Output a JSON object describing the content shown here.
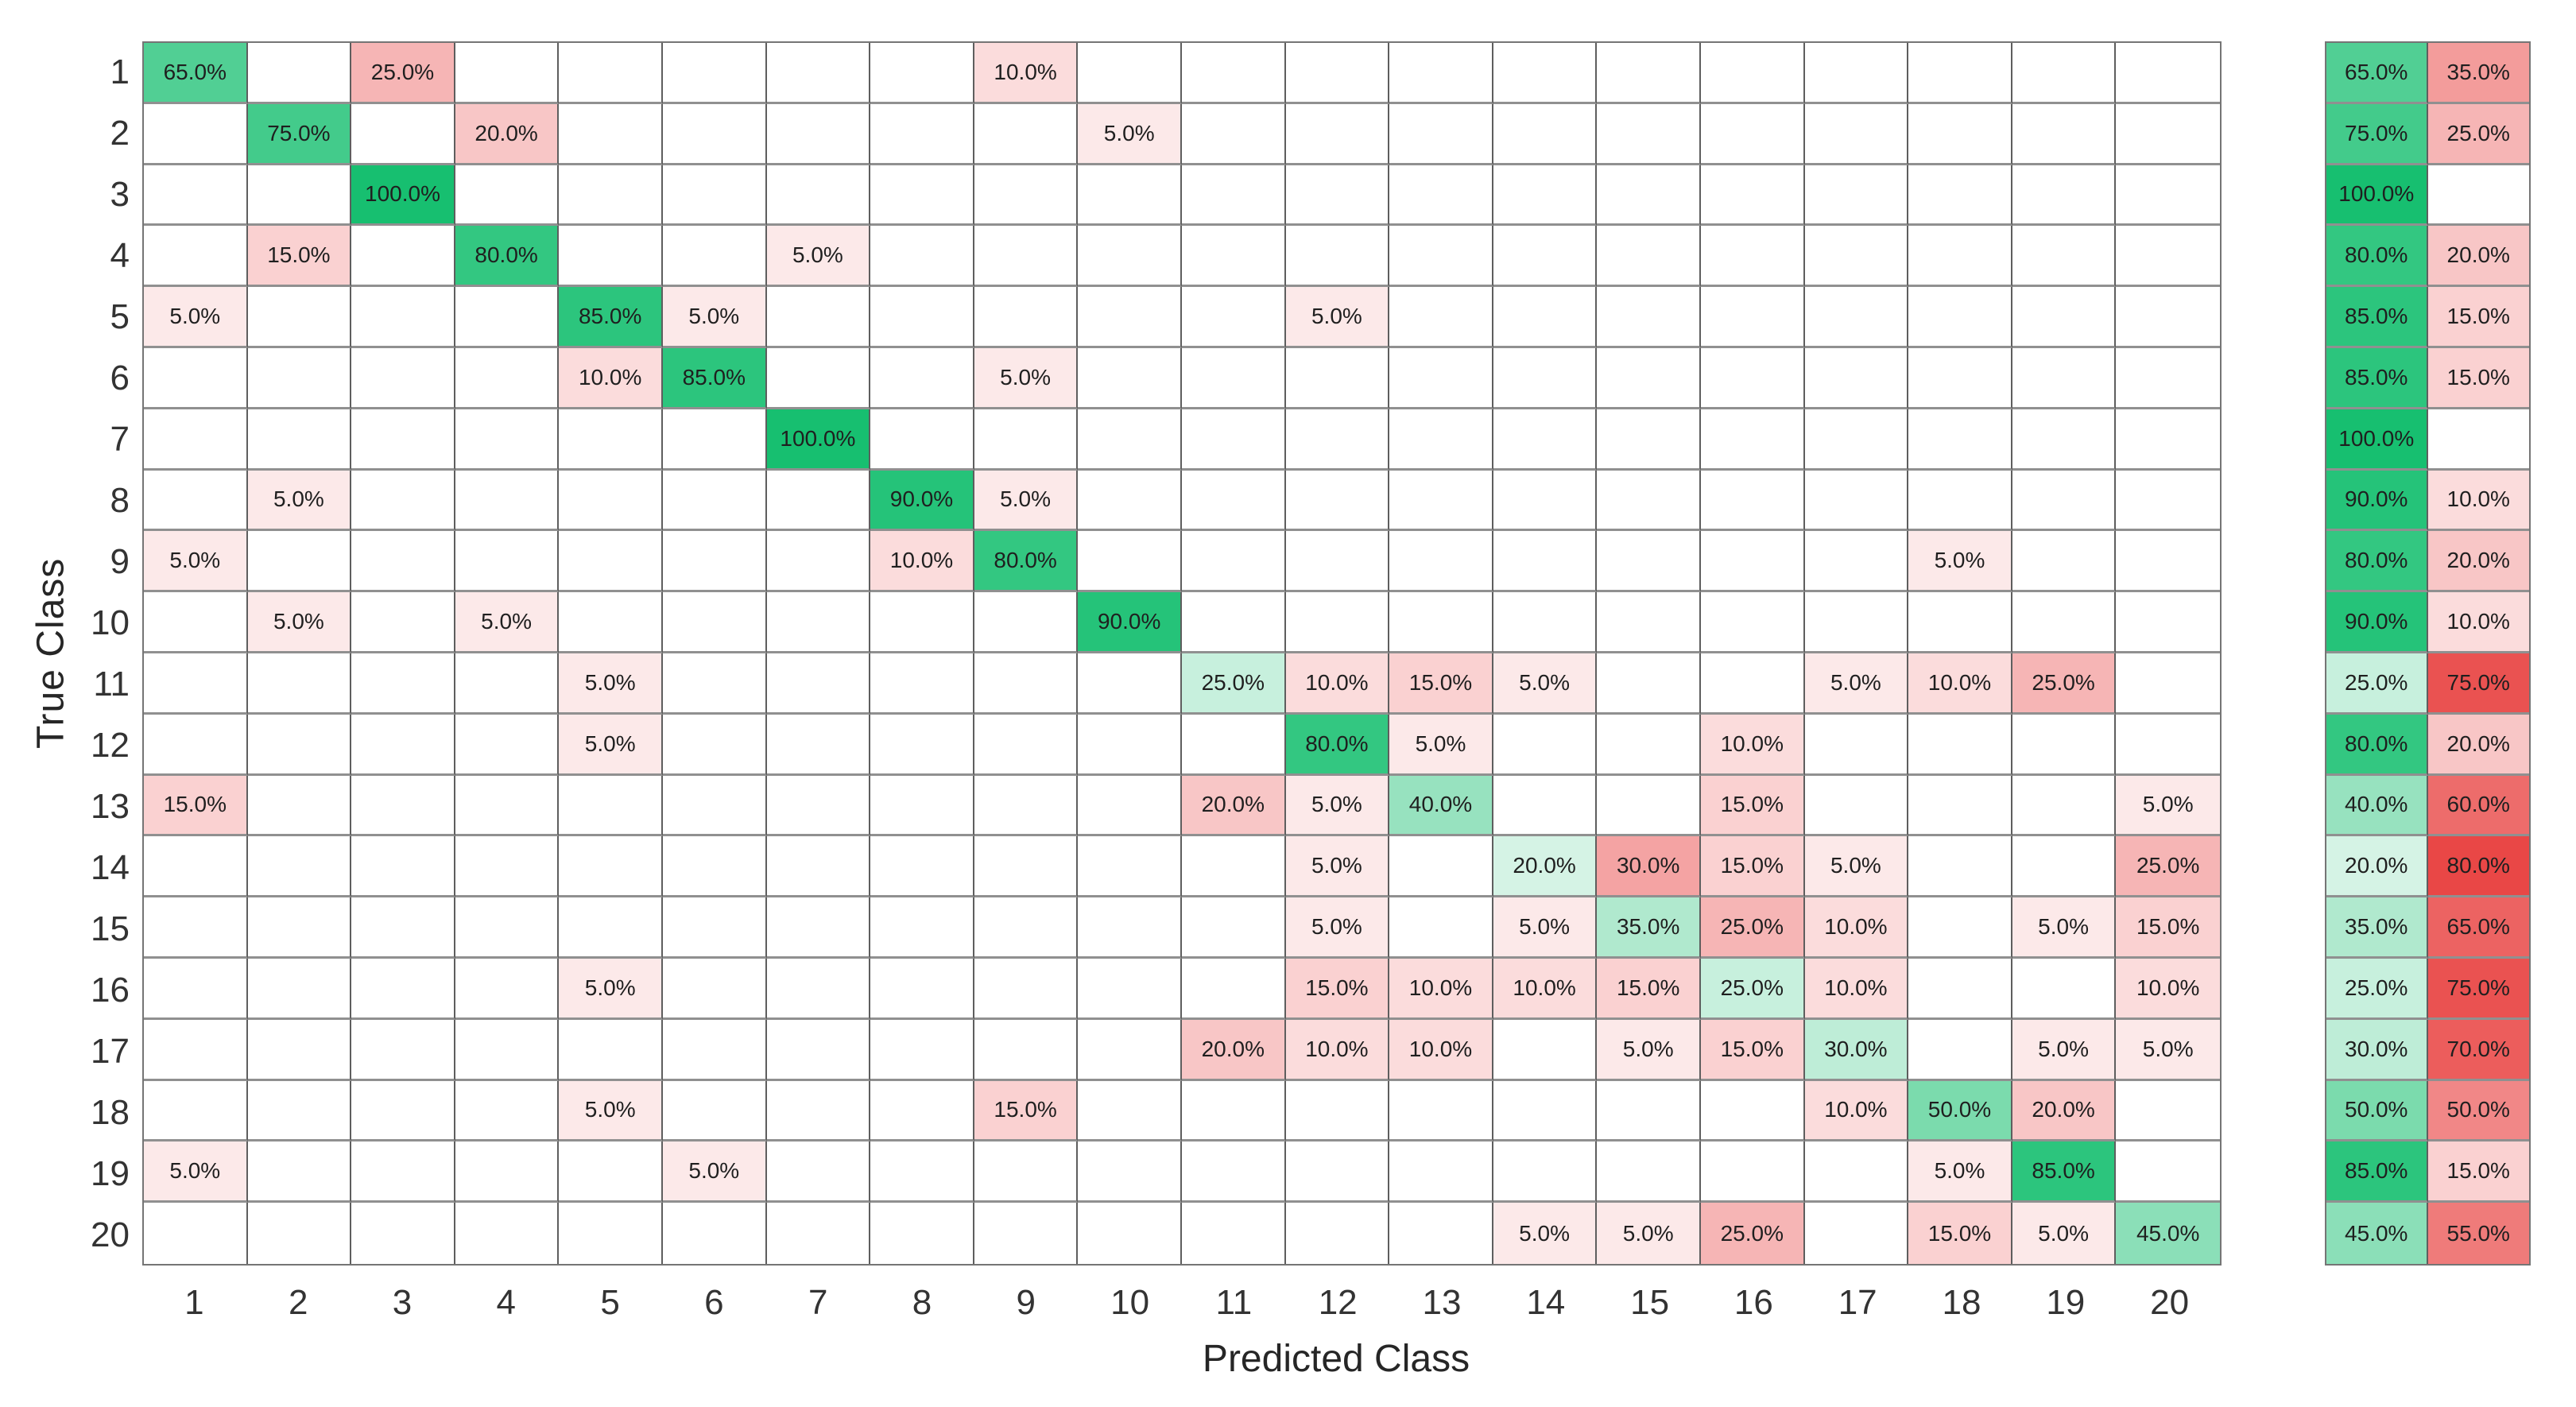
{
  "chart_data": {
    "type": "heatmap",
    "subtype": "confusion-matrix",
    "title": "",
    "xlabel": "Predicted Class",
    "ylabel": "True Class",
    "x_tick_labels": [
      "1",
      "2",
      "3",
      "4",
      "5",
      "6",
      "7",
      "8",
      "9",
      "10",
      "11",
      "12",
      "13",
      "14",
      "15",
      "16",
      "17",
      "18",
      "19",
      "20"
    ],
    "y_tick_labels": [
      "1",
      "2",
      "3",
      "4",
      "5",
      "6",
      "7",
      "8",
      "9",
      "10",
      "11",
      "12",
      "13",
      "14",
      "15",
      "16",
      "17",
      "18",
      "19",
      "20"
    ],
    "cell_value_suffix": "%",
    "cell_value_decimals": 1,
    "matrix_percent": [
      [
        65,
        0,
        25,
        0,
        0,
        0,
        0,
        0,
        10,
        0,
        0,
        0,
        0,
        0,
        0,
        0,
        0,
        0,
        0,
        0
      ],
      [
        0,
        75,
        0,
        20,
        0,
        0,
        0,
        0,
        0,
        5,
        0,
        0,
        0,
        0,
        0,
        0,
        0,
        0,
        0,
        0
      ],
      [
        0,
        0,
        100,
        0,
        0,
        0,
        0,
        0,
        0,
        0,
        0,
        0,
        0,
        0,
        0,
        0,
        0,
        0,
        0,
        0
      ],
      [
        0,
        15,
        0,
        80,
        0,
        0,
        5,
        0,
        0,
        0,
        0,
        0,
        0,
        0,
        0,
        0,
        0,
        0,
        0,
        0
      ],
      [
        5,
        0,
        0,
        0,
        85,
        5,
        0,
        0,
        0,
        0,
        0,
        5,
        0,
        0,
        0,
        0,
        0,
        0,
        0,
        0
      ],
      [
        0,
        0,
        0,
        0,
        10,
        85,
        0,
        0,
        5,
        0,
        0,
        0,
        0,
        0,
        0,
        0,
        0,
        0,
        0,
        0
      ],
      [
        0,
        0,
        0,
        0,
        0,
        0,
        100,
        0,
        0,
        0,
        0,
        0,
        0,
        0,
        0,
        0,
        0,
        0,
        0,
        0
      ],
      [
        0,
        5,
        0,
        0,
        0,
        0,
        0,
        90,
        5,
        0,
        0,
        0,
        0,
        0,
        0,
        0,
        0,
        0,
        0,
        0
      ],
      [
        5,
        0,
        0,
        0,
        0,
        0,
        0,
        10,
        80,
        0,
        0,
        0,
        0,
        0,
        0,
        0,
        0,
        5,
        0,
        0
      ],
      [
        0,
        5,
        0,
        5,
        0,
        0,
        0,
        0,
        0,
        90,
        0,
        0,
        0,
        0,
        0,
        0,
        0,
        0,
        0,
        0
      ],
      [
        0,
        0,
        0,
        0,
        5,
        0,
        0,
        0,
        0,
        0,
        25,
        10,
        15,
        5,
        0,
        0,
        5,
        10,
        25,
        0
      ],
      [
        0,
        0,
        0,
        0,
        5,
        0,
        0,
        0,
        0,
        0,
        0,
        80,
        5,
        0,
        0,
        10,
        0,
        0,
        0,
        0
      ],
      [
        15,
        0,
        0,
        0,
        0,
        0,
        0,
        0,
        0,
        0,
        20,
        5,
        40,
        0,
        0,
        15,
        0,
        0,
        0,
        5
      ],
      [
        0,
        0,
        0,
        0,
        0,
        0,
        0,
        0,
        0,
        0,
        0,
        5,
        0,
        20,
        30,
        15,
        5,
        0,
        0,
        25
      ],
      [
        0,
        0,
        0,
        0,
        0,
        0,
        0,
        0,
        0,
        0,
        0,
        5,
        0,
        5,
        35,
        25,
        10,
        0,
        5,
        15
      ],
      [
        0,
        0,
        0,
        0,
        5,
        0,
        0,
        0,
        0,
        0,
        0,
        15,
        10,
        10,
        15,
        25,
        10,
        0,
        0,
        10
      ],
      [
        0,
        0,
        0,
        0,
        0,
        0,
        0,
        0,
        0,
        0,
        20,
        10,
        10,
        0,
        5,
        15,
        30,
        0,
        5,
        5
      ],
      [
        0,
        0,
        0,
        0,
        5,
        0,
        0,
        0,
        15,
        0,
        0,
        0,
        0,
        0,
        0,
        0,
        10,
        50,
        20,
        0
      ],
      [
        5,
        0,
        0,
        0,
        0,
        5,
        0,
        0,
        0,
        0,
        0,
        0,
        0,
        0,
        0,
        0,
        0,
        5,
        85,
        0
      ],
      [
        0,
        0,
        0,
        0,
        0,
        0,
        0,
        0,
        0,
        0,
        0,
        0,
        0,
        5,
        5,
        25,
        0,
        15,
        5,
        45
      ]
    ],
    "row_summary": {
      "correct_percent": [
        65,
        75,
        100,
        80,
        85,
        85,
        100,
        90,
        80,
        90,
        25,
        80,
        40,
        20,
        35,
        25,
        30,
        50,
        85,
        45
      ],
      "incorrect_percent": [
        35,
        25,
        0,
        20,
        15,
        15,
        0,
        10,
        20,
        10,
        75,
        20,
        60,
        80,
        65,
        75,
        70,
        50,
        15,
        55
      ]
    },
    "colors": {
      "diagonal_base": "#17BF70",
      "off_diagonal_base": "#E94746",
      "empty_cell": "#FFFFFF",
      "grid_line_vertical": "#5E5E5E",
      "grid_line_horizontal": "#909090",
      "outer_border": "#757575",
      "cell_text": "#1F1F1F",
      "axis_text": "#262626",
      "background": "#FFFFFF"
    },
    "legend_position": "none",
    "grid": true
  }
}
